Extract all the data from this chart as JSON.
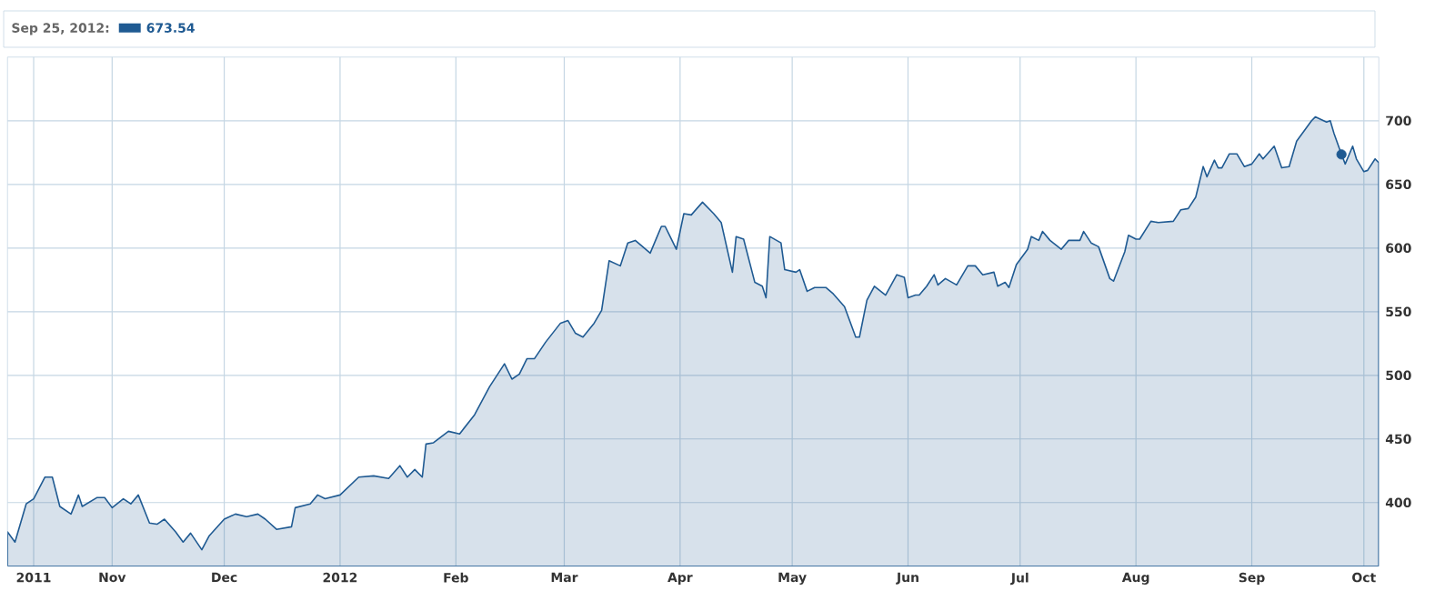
{
  "chart_data": {
    "type": "area",
    "annotations": [
      "Sep 25, 2012:",
      "673.54"
    ],
    "series": [
      {
        "color": "#1f5a92",
        "x": [
          "2011-10-04",
          "2011-10-06",
          "2011-10-09",
          "2011-10-11",
          "2011-10-14",
          "2011-10-16",
          "2011-10-18",
          "2011-10-21",
          "2011-10-23",
          "2011-10-24",
          "2011-10-28",
          "2011-10-30",
          "2011-11-01",
          "2011-11-04",
          "2011-11-06",
          "2011-11-08",
          "2011-11-11",
          "2011-11-13",
          "2011-11-15",
          "2011-11-18",
          "2011-11-20",
          "2011-11-22",
          "2011-11-25",
          "2011-11-27",
          "2011-12-01",
          "2011-12-04",
          "2011-12-07",
          "2011-12-10",
          "2011-12-12",
          "2011-12-15",
          "2011-12-19",
          "2011-12-20",
          "2011-12-24",
          "2011-12-26",
          "2011-12-28",
          "2012-01-01",
          "2012-01-06",
          "2012-01-10",
          "2012-01-14",
          "2012-01-17",
          "2012-01-19",
          "2012-01-21",
          "2012-01-23",
          "2012-01-24",
          "2012-01-26",
          "2012-01-30",
          "2012-02-02",
          "2012-02-06",
          "2012-02-10",
          "2012-02-14",
          "2012-02-16",
          "2012-02-18",
          "2012-02-20",
          "2012-02-22",
          "2012-02-25",
          "2012-02-29",
          "2012-03-02",
          "2012-03-04",
          "2012-03-06",
          "2012-03-09",
          "2012-03-11",
          "2012-03-13",
          "2012-03-16",
          "2012-03-18",
          "2012-03-20",
          "2012-03-24",
          "2012-03-27",
          "2012-03-28",
          "2012-03-31",
          "2012-04-02",
          "2012-04-04",
          "2012-04-07",
          "2012-04-10",
          "2012-04-12",
          "2012-04-15",
          "2012-04-16",
          "2012-04-18",
          "2012-04-21",
          "2012-04-23",
          "2012-04-24",
          "2012-04-25",
          "2012-04-28",
          "2012-04-29",
          "2012-05-02",
          "2012-05-03",
          "2012-05-05",
          "2012-05-07",
          "2012-05-10",
          "2012-05-12",
          "2012-05-15",
          "2012-05-18",
          "2012-05-19",
          "2012-05-21",
          "2012-05-23",
          "2012-05-26",
          "2012-05-29",
          "2012-05-31",
          "2012-06-01",
          "2012-06-03",
          "2012-06-04",
          "2012-06-06",
          "2012-06-08",
          "2012-06-09",
          "2012-06-11",
          "2012-06-14",
          "2012-06-17",
          "2012-06-19",
          "2012-06-21",
          "2012-06-24",
          "2012-06-25",
          "2012-06-27",
          "2012-06-28",
          "2012-06-30",
          "2012-07-03",
          "2012-07-04",
          "2012-07-06",
          "2012-07-07",
          "2012-07-09",
          "2012-07-12",
          "2012-07-14",
          "2012-07-17",
          "2012-07-18",
          "2012-07-20",
          "2012-07-22",
          "2012-07-25",
          "2012-07-26",
          "2012-07-29",
          "2012-07-30",
          "2012-08-01",
          "2012-08-02",
          "2012-08-05",
          "2012-08-07",
          "2012-08-11",
          "2012-08-13",
          "2012-08-15",
          "2012-08-17",
          "2012-08-19",
          "2012-08-20",
          "2012-08-22",
          "2012-08-23",
          "2012-08-24",
          "2012-08-26",
          "2012-08-28",
          "2012-08-30",
          "2012-09-01",
          "2012-09-03",
          "2012-09-04",
          "2012-09-07",
          "2012-09-09",
          "2012-09-11",
          "2012-09-13",
          "2012-09-17",
          "2012-09-18",
          "2012-09-21",
          "2012-09-22",
          "2012-09-23",
          "2012-09-25",
          "2012-09-26",
          "2012-09-28",
          "2012-09-29",
          "2012-10-01",
          "2012-10-02",
          "2012-10-04",
          "2012-10-05"
        ],
        "values": [
          377,
          369,
          399,
          403,
          420,
          420,
          397,
          391,
          406,
          397,
          404,
          404,
          396,
          403,
          399,
          406,
          384,
          383,
          387,
          377,
          369,
          376,
          363,
          374,
          387,
          391,
          389,
          391,
          387,
          379,
          381,
          396,
          399,
          406,
          403,
          406,
          420,
          421,
          419,
          429,
          420,
          426,
          420,
          446,
          447,
          456,
          454,
          469,
          491,
          509,
          497,
          501,
          513,
          513,
          526,
          541,
          543,
          533,
          530,
          541,
          551,
          590,
          586,
          604,
          606,
          596,
          617,
          617,
          599,
          627,
          626,
          636,
          627,
          620,
          581,
          609,
          607,
          573,
          570,
          561,
          609,
          604,
          583,
          581,
          583,
          566,
          569,
          569,
          564,
          554,
          530,
          530,
          559,
          570,
          563,
          579,
          577,
          561,
          563,
          563,
          570,
          579,
          571,
          576,
          571,
          586,
          586,
          579,
          581,
          570,
          573,
          569,
          587,
          599,
          609,
          606,
          613,
          606,
          599,
          606,
          606,
          613,
          604,
          601,
          576,
          574,
          597,
          610,
          607,
          607,
          621,
          620,
          621,
          630,
          631,
          640,
          664,
          656,
          669,
          663,
          663,
          674,
          674,
          664,
          666,
          674,
          670,
          680,
          663,
          664,
          684,
          700,
          703,
          699,
          700,
          690,
          673.54,
          666,
          680,
          670,
          660,
          661,
          670,
          667
        ]
      },
      {
        "type": "scatter",
        "marker": "circle",
        "color": "#1f5a92",
        "x": [
          "2012-09-25"
        ],
        "values": [
          673.54
        ]
      }
    ],
    "xlim": [
      "2011-10-04",
      "2012-10-05"
    ],
    "xticks": [
      {
        "value": "2011-10-11",
        "label": "2011"
      },
      {
        "value": "2011-11-01",
        "label": "Nov"
      },
      {
        "value": "2011-12-01",
        "label": "Dec"
      },
      {
        "value": "2012-01-01",
        "label": "2012"
      },
      {
        "value": "2012-02-01",
        "label": "Feb"
      },
      {
        "value": "2012-03-01",
        "label": "Mar"
      },
      {
        "value": "2012-04-01",
        "label": "Apr"
      },
      {
        "value": "2012-05-01",
        "label": "May"
      },
      {
        "value": "2012-06-01",
        "label": "Jun"
      },
      {
        "value": "2012-07-01",
        "label": "Jul"
      },
      {
        "value": "2012-08-01",
        "label": "Aug"
      },
      {
        "value": "2012-09-01",
        "label": "Sep"
      },
      {
        "value": "2012-10-01",
        "label": "Oct"
      }
    ],
    "ylim": [
      350,
      750
    ],
    "yticks": [
      400,
      450,
      500,
      550,
      600,
      650,
      700
    ],
    "grid": true
  }
}
